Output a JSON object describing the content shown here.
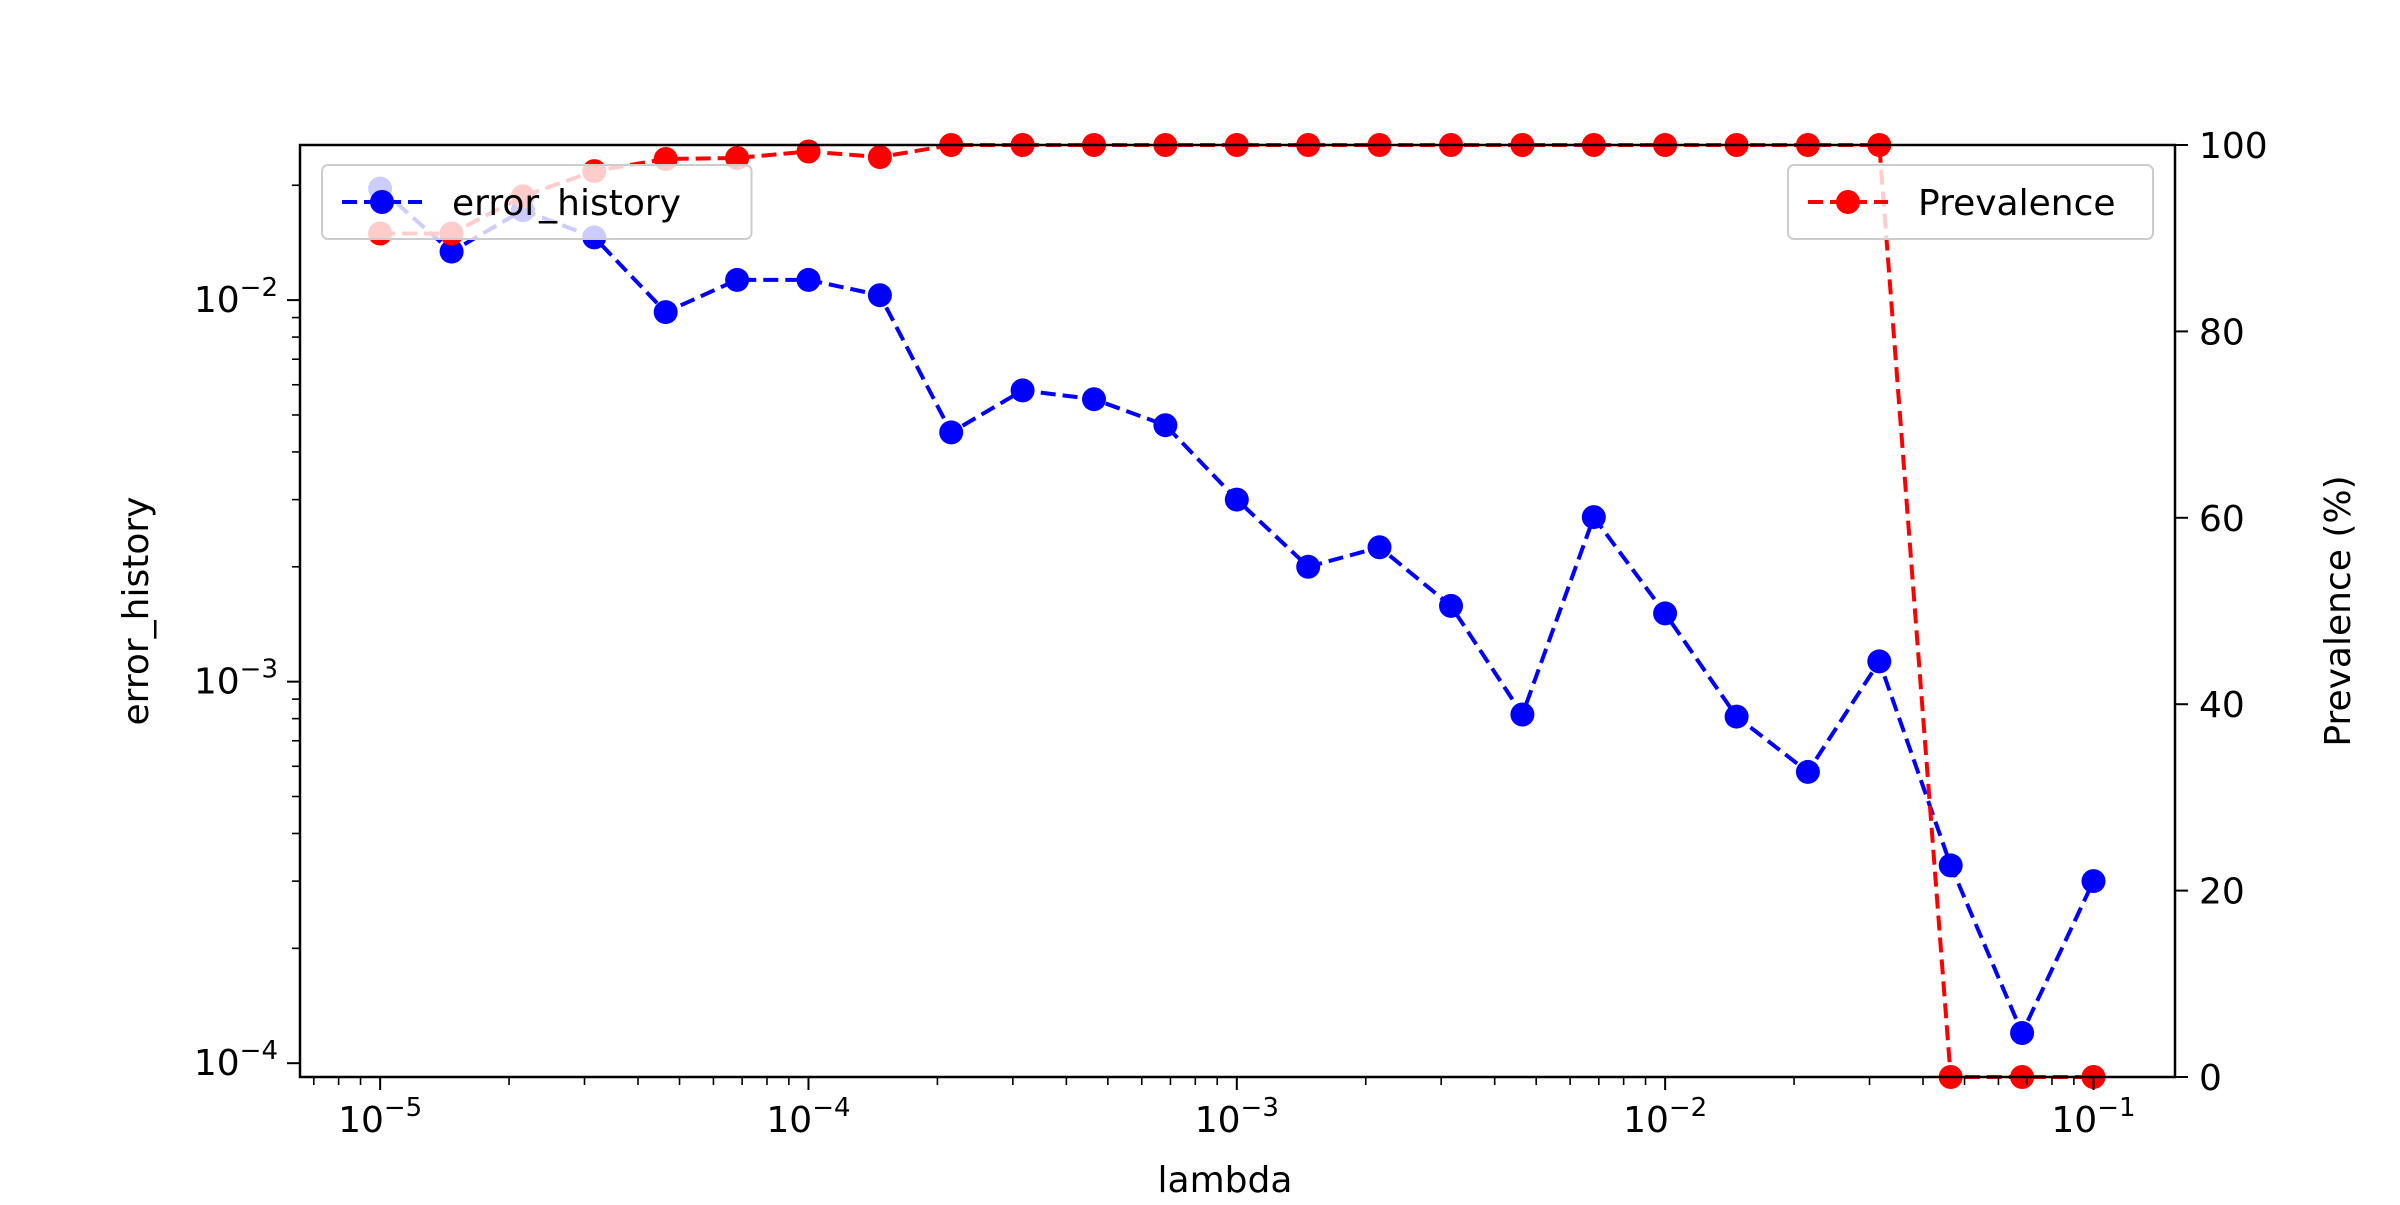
{
  "chart_data": {
    "type": "line",
    "title": "",
    "xlabel": "lambda",
    "ylabel": "error_history",
    "y2label": "Prevalence (%)",
    "x_scale": "log",
    "y_scale": "log",
    "xlim": [
      6.5e-06,
      0.155
    ],
    "ylim": [
      9.2e-05,
      0.0255
    ],
    "y2lim": [
      0,
      100
    ],
    "x_ticks": [
      {
        "value": 1e-05,
        "base": "10",
        "exp": "−5"
      },
      {
        "value": 0.0001,
        "base": "10",
        "exp": "−4"
      },
      {
        "value": 0.001,
        "base": "10",
        "exp": "−3"
      },
      {
        "value": 0.01,
        "base": "10",
        "exp": "−2"
      },
      {
        "value": 0.1,
        "base": "10",
        "exp": "−1"
      }
    ],
    "y_ticks": [
      {
        "value": 0.0001,
        "base": "10",
        "exp": "−4"
      },
      {
        "value": 0.001,
        "base": "10",
        "exp": "−3"
      },
      {
        "value": 0.01,
        "base": "10",
        "exp": "−2"
      }
    ],
    "y2_ticks": [
      {
        "value": 0,
        "label": "0"
      },
      {
        "value": 20,
        "label": "20"
      },
      {
        "value": 40,
        "label": "40"
      },
      {
        "value": 60,
        "label": "60"
      },
      {
        "value": 80,
        "label": "80"
      },
      {
        "value": 100,
        "label": "100"
      }
    ],
    "x": [
      1e-05,
      1.468e-05,
      2.154e-05,
      3.162e-05,
      4.642e-05,
      6.813e-05,
      0.0001,
      0.0001468,
      0.0002154,
      0.0003162,
      0.0004642,
      0.0006813,
      0.001,
      0.001468,
      0.002154,
      0.003162,
      0.004642,
      0.006813,
      0.01,
      0.01468,
      0.02154,
      0.03162,
      0.04642,
      0.06813,
      0.1
    ],
    "series": [
      {
        "name": "error_history",
        "axis": "left",
        "color": "#0000ff",
        "values": [
          0.0196,
          0.0134,
          0.0172,
          0.0146,
          0.0093,
          0.0113,
          0.0113,
          0.0103,
          0.0045,
          0.0058,
          0.0055,
          0.0047,
          0.003,
          0.002,
          0.00225,
          0.00158,
          0.00082,
          0.0027,
          0.00151,
          0.00081,
          0.00058,
          0.00113,
          0.00033,
          0.00012,
          0.0003
        ]
      },
      {
        "name": "Prevalence",
        "axis": "right",
        "color": "#ff0000",
        "values": [
          90.5,
          90.5,
          94.5,
          97.2,
          98.5,
          98.6,
          99.3,
          98.7,
          100,
          100,
          100,
          100,
          100,
          100,
          100,
          100,
          100,
          100,
          100,
          100,
          100,
          100,
          0,
          0,
          0
        ]
      }
    ],
    "legends": [
      {
        "series": "error_history",
        "position": "upper-left"
      },
      {
        "series": "Prevalence",
        "position": "upper-right"
      }
    ],
    "grid": false
  }
}
